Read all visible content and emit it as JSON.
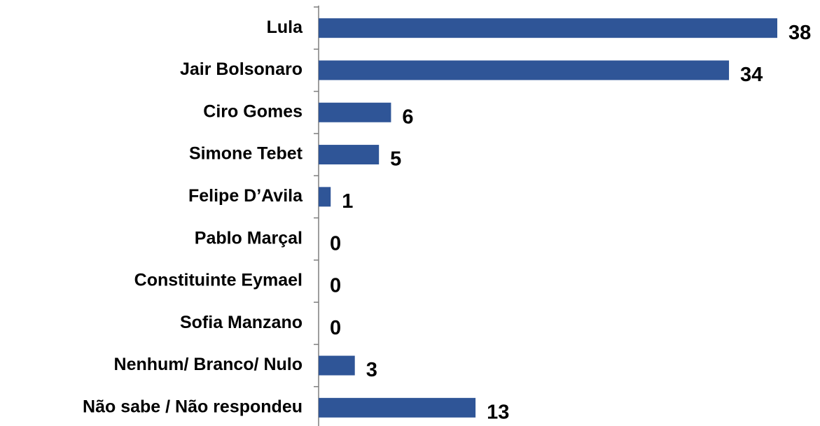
{
  "chart_data": {
    "type": "bar",
    "orientation": "horizontal",
    "categories": [
      "Lula",
      "Jair Bolsonaro",
      "Ciro Gomes",
      "Simone Tebet",
      "Felipe D’Avila",
      "Pablo Marçal",
      "Constituinte Eymael",
      "Sofia Manzano",
      "Nenhum/ Branco/ Nulo",
      "Não sabe / Não respondeu"
    ],
    "values": [
      38,
      34,
      6,
      5,
      1,
      0,
      0,
      0,
      3,
      13
    ],
    "color": "#2f5597"
  }
}
